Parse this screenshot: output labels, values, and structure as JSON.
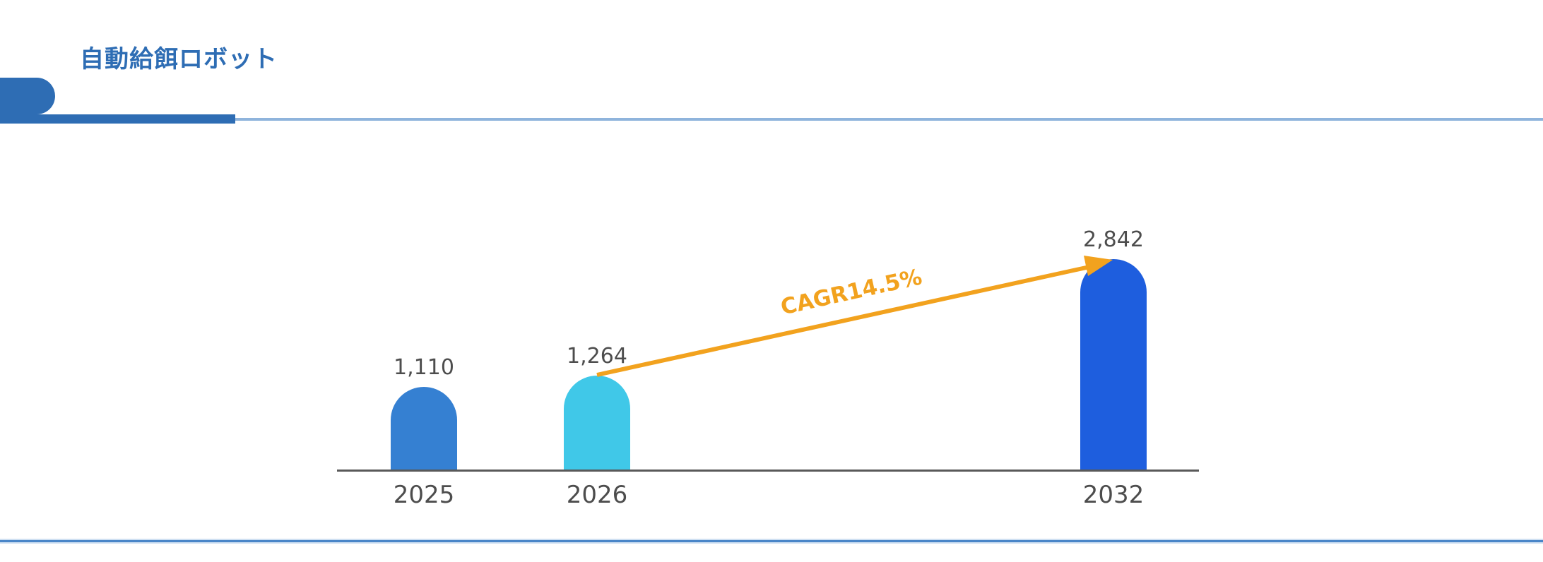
{
  "page": {
    "title": "自動給餌ロボット"
  },
  "chart_data": {
    "type": "bar",
    "title": "自動給餌ロボット",
    "categories": [
      "2025",
      "2026",
      "2032"
    ],
    "values": [
      1110,
      1264,
      2842
    ],
    "value_labels": [
      "1,110",
      "1,264",
      "2,842"
    ],
    "bar_colors": [
      "#3580d2",
      "#40c8e8",
      "#1e5ede"
    ],
    "annotation": "CAGR14.5%",
    "xlabel": "",
    "ylabel": "",
    "ylim": [
      0,
      3000
    ],
    "grid": false,
    "legend": false
  },
  "colors": {
    "header_blue": "#2e6db4",
    "divider_light_blue": "#8fb4dc",
    "bottom_line_blue": "#4a86c8",
    "axis_gray": "#595959",
    "label_gray": "#4d4d4d",
    "accent_orange": "#f2a21e"
  }
}
